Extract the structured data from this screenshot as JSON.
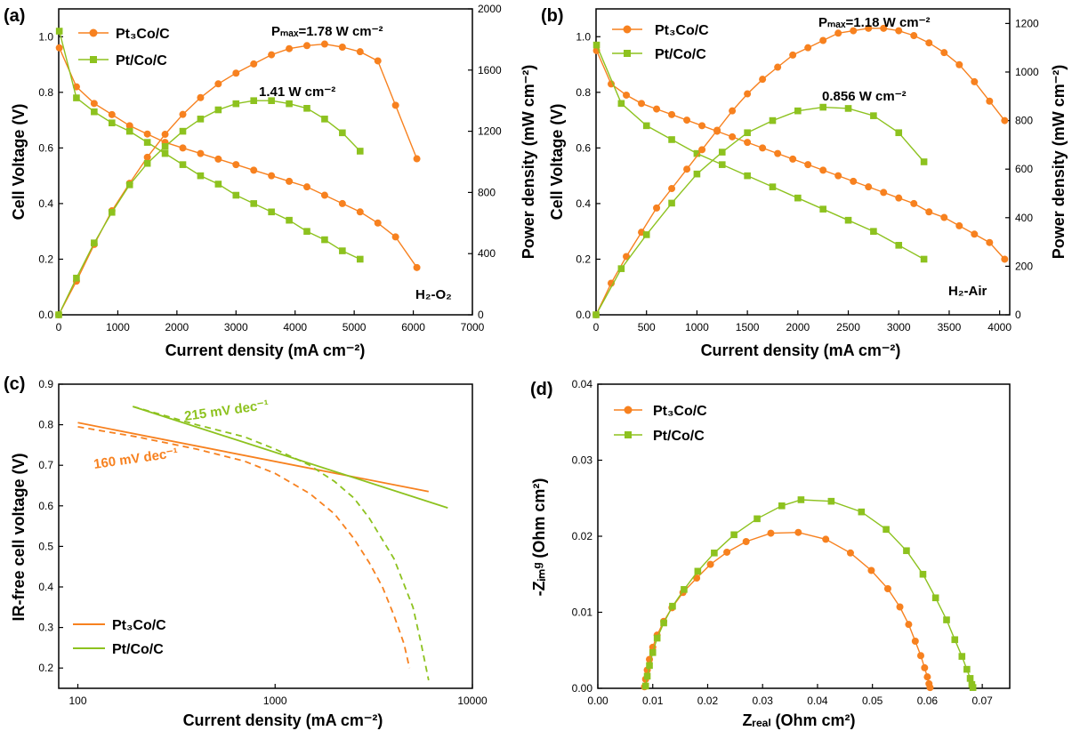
{
  "colors": {
    "pt3co": "#f7811f",
    "ptco": "#8dc21f",
    "axis": "#000000"
  },
  "chart_data": [
    {
      "panel": "(a)",
      "type": "line",
      "xlabel": "Current density (mA cm⁻²)",
      "ylabel": "Cell Voltage (V)",
      "y2label": "Power density (mW cm⁻²)",
      "xlim": [
        0,
        7000
      ],
      "ylim": [
        0,
        1.1
      ],
      "y2lim": [
        0,
        2000
      ],
      "xticks": [
        "0",
        "1000",
        "2000",
        "3000",
        "4000",
        "5000",
        "6000",
        "7000"
      ],
      "yticks": [
        "0.0",
        "0.2",
        "0.4",
        "0.6",
        "0.8",
        "1.0"
      ],
      "y2ticks": [
        "0",
        "400",
        "800",
        "1200",
        "1600",
        "2000"
      ],
      "annotations": [
        "Pₘₐₓ=1.78 W cm⁻²",
        "1.41 W cm⁻²",
        "H₂-O₂"
      ],
      "legend": [
        "Pt₃Co/C",
        "Pt/Co/C"
      ],
      "series": [
        {
          "name": "Pt₃Co/C",
          "color": "pt3co",
          "marker": "circle",
          "axis": "y",
          "x": [
            10,
            300,
            600,
            900,
            1200,
            1500,
            1800,
            2100,
            2400,
            2700,
            3000,
            3300,
            3600,
            3900,
            4200,
            4500,
            4800,
            5100,
            5400,
            5700,
            6060
          ],
          "y": [
            0.96,
            0.82,
            0.76,
            0.72,
            0.68,
            0.65,
            0.62,
            0.6,
            0.58,
            0.56,
            0.54,
            0.52,
            0.5,
            0.48,
            0.46,
            0.43,
            0.4,
            0.37,
            0.33,
            0.28,
            0.17
          ]
        },
        {
          "name": "Pt/Co/C",
          "color": "ptco",
          "marker": "square",
          "axis": "y",
          "x": [
            10,
            300,
            600,
            900,
            1200,
            1500,
            1800,
            2100,
            2400,
            2700,
            3000,
            3300,
            3600,
            3900,
            4200,
            4500,
            4800,
            5100
          ],
          "y": [
            1.02,
            0.78,
            0.73,
            0.69,
            0.66,
            0.62,
            0.58,
            0.54,
            0.5,
            0.47,
            0.43,
            0.4,
            0.37,
            0.34,
            0.3,
            0.27,
            0.23,
            0.2
          ]
        },
        {
          "name": "Pt₃Co/C",
          "color": "pt3co",
          "marker": "circle",
          "axis": "y2",
          "x": [
            0,
            300,
            600,
            900,
            1200,
            1500,
            1800,
            2100,
            2400,
            2700,
            3000,
            3300,
            3600,
            3900,
            4200,
            4500,
            4800,
            5100,
            5400,
            5700,
            6060
          ],
          "y": [
            0,
            220,
            460,
            680,
            860,
            1030,
            1180,
            1310,
            1420,
            1510,
            1580,
            1640,
            1700,
            1740,
            1760,
            1770,
            1750,
            1720,
            1660,
            1370,
            1020
          ]
        },
        {
          "name": "Pt/Co/C",
          "color": "ptco",
          "marker": "square",
          "axis": "y2",
          "x": [
            0,
            300,
            600,
            900,
            1200,
            1500,
            1800,
            2100,
            2400,
            2700,
            3000,
            3300,
            3600,
            3900,
            4200,
            4500,
            4800,
            5100
          ],
          "y": [
            0,
            240,
            470,
            670,
            850,
            990,
            1100,
            1200,
            1280,
            1340,
            1380,
            1400,
            1400,
            1380,
            1350,
            1280,
            1190,
            1070
          ]
        }
      ]
    },
    {
      "panel": "(b)",
      "type": "line",
      "xlabel": "Current density (mA cm⁻²)",
      "ylabel": "Cell Voltage (V)",
      "y2label": "Power density (mW cm⁻²)",
      "xlim": [
        0,
        4100
      ],
      "ylim": [
        0,
        1.1
      ],
      "y2lim": [
        0,
        1260
      ],
      "xticks": [
        "0",
        "500",
        "1000",
        "1500",
        "2000",
        "2500",
        "3000",
        "3500",
        "4000"
      ],
      "yticks": [
        "0.0",
        "0.2",
        "0.4",
        "0.6",
        "0.8",
        "1.0"
      ],
      "y2ticks": [
        "0",
        "200",
        "400",
        "600",
        "800",
        "1000",
        "1200"
      ],
      "annotations": [
        "Pₘₐₓ=1.18 W cm⁻²",
        "0.856 W cm⁻²",
        "H₂-Air"
      ],
      "legend": [
        "Pt₃Co/C",
        "Pt/Co/C"
      ],
      "series": [
        {
          "name": "Pt₃Co/C",
          "color": "pt3co",
          "marker": "circle",
          "axis": "y",
          "x": [
            5,
            150,
            300,
            450,
            600,
            750,
            900,
            1050,
            1200,
            1350,
            1500,
            1650,
            1800,
            1950,
            2100,
            2250,
            2400,
            2550,
            2700,
            2850,
            3000,
            3150,
            3300,
            3450,
            3600,
            3750,
            3900,
            4050
          ],
          "y": [
            0.95,
            0.83,
            0.79,
            0.76,
            0.74,
            0.72,
            0.7,
            0.68,
            0.66,
            0.64,
            0.62,
            0.6,
            0.58,
            0.56,
            0.54,
            0.52,
            0.5,
            0.48,
            0.46,
            0.44,
            0.42,
            0.4,
            0.37,
            0.35,
            0.32,
            0.29,
            0.26,
            0.2
          ]
        },
        {
          "name": "Pt/Co/C",
          "color": "ptco",
          "marker": "square",
          "axis": "y",
          "x": [
            5,
            250,
            500,
            750,
            1000,
            1250,
            1500,
            1750,
            2000,
            2250,
            2500,
            2750,
            3000,
            3250
          ],
          "y": [
            0.97,
            0.76,
            0.68,
            0.63,
            0.58,
            0.54,
            0.5,
            0.46,
            0.42,
            0.38,
            0.34,
            0.3,
            0.25,
            0.2
          ]
        },
        {
          "name": "Pt₃Co/C",
          "color": "pt3co",
          "marker": "circle",
          "axis": "y2",
          "x": [
            0,
            150,
            300,
            450,
            600,
            750,
            900,
            1050,
            1200,
            1350,
            1500,
            1650,
            1800,
            1950,
            2100,
            2250,
            2400,
            2550,
            2700,
            2850,
            3000,
            3150,
            3300,
            3450,
            3600,
            3750,
            3900,
            4050
          ],
          "y": [
            0,
            130,
            240,
            340,
            440,
            520,
            600,
            680,
            760,
            840,
            910,
            970,
            1020,
            1070,
            1100,
            1130,
            1160,
            1170,
            1180,
            1180,
            1170,
            1150,
            1120,
            1080,
            1030,
            960,
            880,
            800
          ]
        },
        {
          "name": "Pt/Co/C",
          "color": "ptco",
          "marker": "square",
          "axis": "y2",
          "x": [
            0,
            250,
            500,
            750,
            1000,
            1250,
            1500,
            1750,
            2000,
            2250,
            2500,
            2750,
            3000,
            3250
          ],
          "y": [
            0,
            190,
            330,
            460,
            580,
            670,
            750,
            800,
            840,
            855,
            850,
            820,
            750,
            630
          ]
        }
      ]
    },
    {
      "panel": "(c)",
      "type": "line",
      "xscale": "log",
      "xlabel": "Current density (mA cm⁻²)",
      "ylabel": "IR-free cell voltage (V)",
      "xlim": [
        80,
        10000
      ],
      "ylim": [
        0.15,
        0.9
      ],
      "xticks": [
        "100",
        "1000",
        "10000"
      ],
      "yticks": [
        "0.2",
        "0.3",
        "0.4",
        "0.5",
        "0.6",
        "0.7",
        "0.8",
        "0.9"
      ],
      "annotations": [
        "215 mV dec⁻¹",
        "160 mV dec⁻¹"
      ],
      "legend": [
        "Pt₃Co/C",
        "Pt/Co/C"
      ],
      "series": [
        {
          "name": "Pt₃Co/C",
          "color": "pt3co",
          "style": "solid",
          "x": [
            100,
            6000
          ],
          "y": [
            0.805,
            0.635
          ]
        },
        {
          "name": "Pt/Co/C",
          "color": "ptco",
          "style": "solid",
          "x": [
            190,
            7500
          ],
          "y": [
            0.845,
            0.595
          ]
        },
        {
          "name": "Pt₃Co/C",
          "color": "pt3co",
          "style": "dashed",
          "x": [
            100,
            200,
            400,
            700,
            1000,
            1500,
            2000,
            2500,
            3000,
            3500,
            4000,
            4500,
            4800
          ],
          "y": [
            0.795,
            0.77,
            0.74,
            0.71,
            0.68,
            0.63,
            0.58,
            0.52,
            0.46,
            0.4,
            0.33,
            0.26,
            0.2
          ]
        },
        {
          "name": "Pt/Co/C",
          "color": "ptco",
          "style": "dashed",
          "x": [
            190,
            400,
            700,
            1000,
            1500,
            2000,
            2500,
            3000,
            4000,
            5000,
            5500,
            6000
          ],
          "y": [
            0.845,
            0.8,
            0.77,
            0.74,
            0.7,
            0.66,
            0.62,
            0.57,
            0.47,
            0.35,
            0.26,
            0.17
          ]
        }
      ]
    },
    {
      "panel": "(d)",
      "type": "scatter",
      "xlabel": "Zᵣₑₐₗ (Ohm cm²)",
      "ylabel": "-Zᵢₘᵍ (Ohm cm²)",
      "xlim": [
        0,
        0.075
      ],
      "ylim": [
        0,
        0.04
      ],
      "xticks": [
        "0.00",
        "0.01",
        "0.02",
        "0.03",
        "0.04",
        "0.05",
        "0.06",
        "0.07"
      ],
      "yticks": [
        "0.00",
        "0.01",
        "0.02",
        "0.03",
        "0.04"
      ],
      "legend": [
        "Pt₃Co/C",
        "Pt/Co/C"
      ],
      "series": [
        {
          "name": "Pt₃Co/C",
          "color": "pt3co",
          "marker": "circle",
          "x": [
            0.0085,
            0.0087,
            0.009,
            0.0094,
            0.01,
            0.0108,
            0.012,
            0.0135,
            0.0155,
            0.018,
            0.0205,
            0.0235,
            0.027,
            0.0315,
            0.0365,
            0.0415,
            0.046,
            0.0498,
            0.0528,
            0.055,
            0.0566,
            0.0578,
            0.0588,
            0.0595,
            0.06,
            0.0603,
            0.0605
          ],
          "y": [
            0.0002,
            0.0012,
            0.0024,
            0.0038,
            0.0054,
            0.007,
            0.0088,
            0.0106,
            0.0126,
            0.0145,
            0.0163,
            0.0179,
            0.0193,
            0.0204,
            0.0205,
            0.0196,
            0.0178,
            0.0155,
            0.0131,
            0.0107,
            0.0084,
            0.0062,
            0.0043,
            0.0027,
            0.0015,
            0.0006,
            0.0001
          ]
        },
        {
          "name": "Pt/Co/C",
          "color": "ptco",
          "marker": "square",
          "x": [
            0.0087,
            0.009,
            0.0094,
            0.01,
            0.0108,
            0.012,
            0.0136,
            0.0157,
            0.0182,
            0.0212,
            0.0248,
            0.029,
            0.0335,
            0.037,
            0.0425,
            0.048,
            0.0525,
            0.0562,
            0.0592,
            0.0615,
            0.0635,
            0.065,
            0.0663,
            0.0672,
            0.0678,
            0.0681,
            0.0683
          ],
          "y": [
            0.0003,
            0.0016,
            0.003,
            0.0047,
            0.0066,
            0.0086,
            0.0108,
            0.013,
            0.0154,
            0.0178,
            0.0202,
            0.0223,
            0.024,
            0.0248,
            0.0246,
            0.0232,
            0.0209,
            0.0181,
            0.015,
            0.0119,
            0.009,
            0.0064,
            0.0042,
            0.0025,
            0.0013,
            0.0005,
            0.0001
          ]
        }
      ]
    }
  ]
}
